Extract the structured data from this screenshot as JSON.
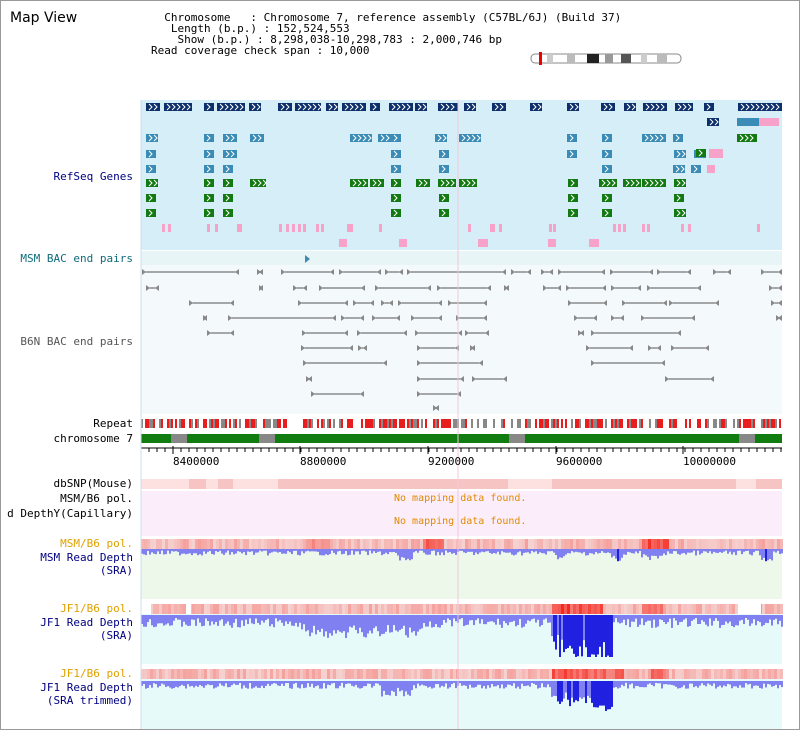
{
  "header": {
    "title": "Map View",
    "info_lines": [
      "  Chromosome   : Chromosome 7, reference assembly (C57BL/6J) (Build 37)",
      "   Length (b.p.) : 152,524,553",
      "    Show (b.p.) : 8,298,038-10,298,783 : 2,000,746 bp",
      "Read coverage check span : 10,000"
    ]
  },
  "tracks": {
    "refseq_genes": "RefSeq Genes",
    "msm_bac": "MSM BAC end pairs",
    "b6n_bac": "B6N BAC end pairs",
    "repeat": "Repeat",
    "chromosome": "chromosome 7",
    "dbsnp": "dbSNP(Mouse)",
    "msm_b6_pol_1": "MSM/B6 pol.",
    "depth_capillary": "d DepthY(Capillary)",
    "msm_b6_pol_2": "MSM/B6 pol.",
    "msm_read_depth": "MSM Read Depth",
    "msm_read_depth_sub": "(SRA)",
    "jf1_b6_pol_1": "JF1/B6 pol.",
    "jf1_read_depth": "JF1 Read Depth",
    "jf1_read_depth_sub": "(SRA)",
    "jf1_b6_pol_2": "JF1/B6 pol.",
    "jf1_read_depth_trimmed": "JF1 Read Depth",
    "jf1_read_depth_trimmed_sub": "(SRA trimmed)"
  },
  "messages": {
    "no_data_1": "No mapping data found.",
    "no_data_2": "No mapping data found."
  },
  "ruler": [
    "8400000",
    "8800000",
    "9200000",
    "9600000",
    "10000000"
  ],
  "colors": {
    "refseq_bg": "#d6eef8",
    "gene_navy": "#0d2f6b",
    "gene_blue": "#3a8bb5",
    "gene_green": "#137a13",
    "gene_pink": "#f6a2c9",
    "chrom_green": "#117d11",
    "pol_red": "#e83a3a",
    "depth_blue": "#7d7df0"
  }
}
